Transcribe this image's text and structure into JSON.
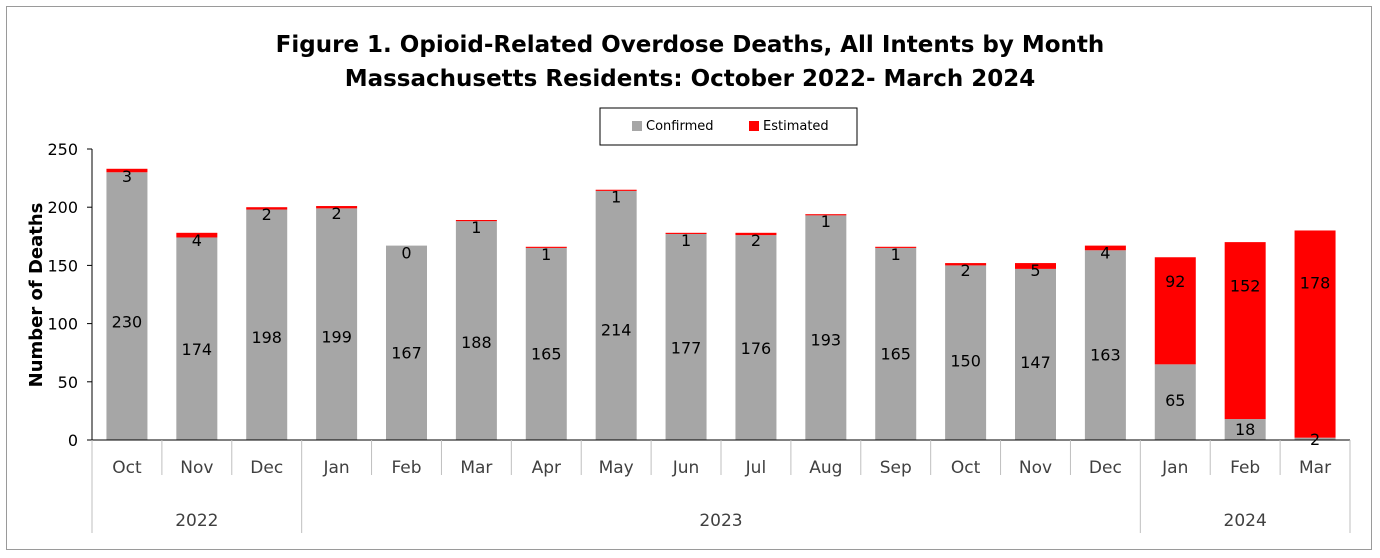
{
  "chart_data": {
    "type": "bar",
    "stacked": true,
    "title": "Figure 1. Opioid-Related Overdose Deaths, All Intents by Month",
    "subtitle": "Massachusetts Residents: October 2022- March 2024",
    "ylabel": "Number of Deaths",
    "ylim": [
      0,
      250
    ],
    "yticks": [
      0,
      50,
      100,
      150,
      200,
      250
    ],
    "grid": false,
    "legend_position": "top-center",
    "categories": [
      "Oct",
      "Nov",
      "Dec",
      "Jan",
      "Feb",
      "Mar",
      "Apr",
      "May",
      "Jun",
      "Jul",
      "Aug",
      "Sep",
      "Oct",
      "Nov",
      "Dec",
      "Jan",
      "Feb",
      "Mar"
    ],
    "year_groups": [
      {
        "label": "2022",
        "count": 3
      },
      {
        "label": "2023",
        "count": 12
      },
      {
        "label": "2024",
        "count": 3
      }
    ],
    "series": [
      {
        "name": "Confirmed",
        "color": "#a6a6a6",
        "values": [
          230,
          174,
          198,
          199,
          167,
          188,
          165,
          214,
          177,
          176,
          193,
          165,
          150,
          147,
          163,
          65,
          18,
          2
        ]
      },
      {
        "name": "Estimated",
        "color": "#ff0000",
        "values": [
          3,
          4,
          2,
          2,
          0,
          1,
          1,
          1,
          1,
          2,
          1,
          1,
          2,
          5,
          4,
          92,
          152,
          178
        ]
      }
    ]
  }
}
